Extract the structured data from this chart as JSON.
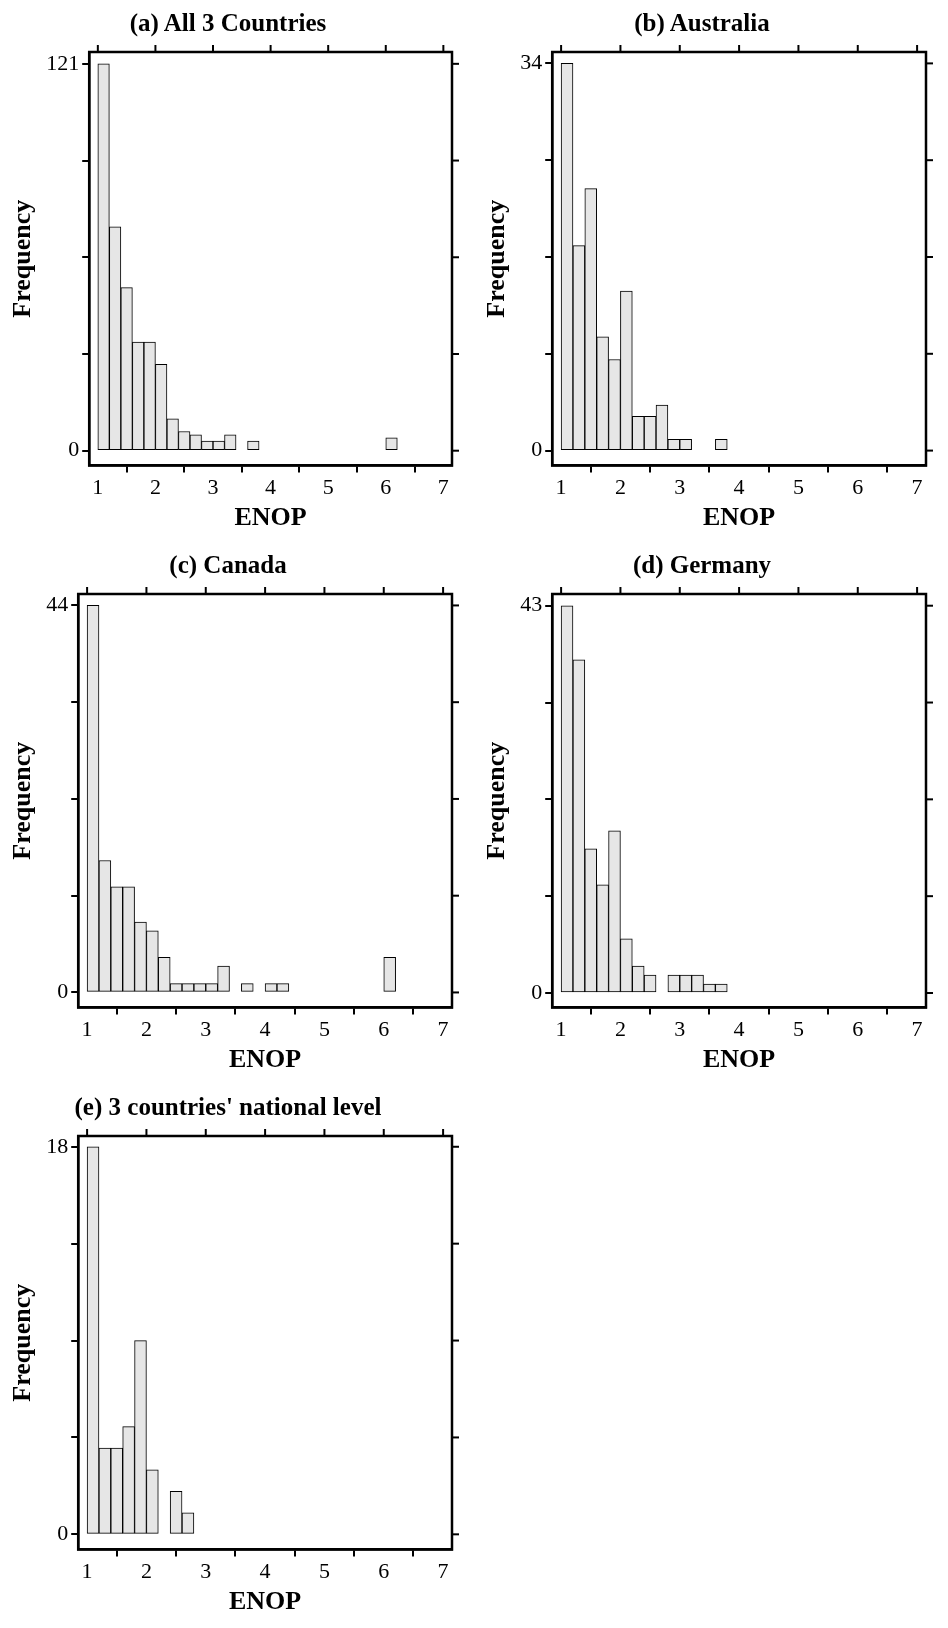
{
  "chart_data": [
    {
      "type": "histogram",
      "title": "(a) All 3 Countries",
      "xlabel": "ENOP",
      "ylabel": "Frequency",
      "color": "#e6e6e6",
      "bins": [
        1,
        1.2,
        1.4,
        1.6,
        1.8,
        2,
        2.2,
        2.4,
        2.6,
        2.8,
        3,
        3.2,
        3.4,
        3.6,
        3.8,
        4,
        4.2,
        4.4,
        4.6,
        4.8,
        5,
        5.2,
        5.4,
        5.6,
        5.8,
        6,
        6.2
      ],
      "values": [
        121,
        70,
        51,
        34,
        34,
        27,
        10,
        6,
        5,
        3,
        3,
        5,
        0,
        3,
        0,
        0,
        0,
        0,
        0,
        0,
        0,
        0,
        0,
        0,
        0,
        4
      ],
      "xlim": [
        0.85,
        7.15
      ],
      "xticks": [
        1,
        2,
        3,
        4,
        5,
        6,
        7
      ],
      "ylim": [
        -4.6,
        124.7
      ],
      "yticks": [
        0,
        {
          "value": 30.25,
          "label": null
        },
        {
          "value": 60.5,
          "label": null
        },
        {
          "value": 90.75,
          "label": null
        },
        121
      ],
      "grid": false,
      "legend": false
    },
    {
      "type": "histogram",
      "title": "(b) Australia",
      "xlabel": "ENOP",
      "ylabel": "Frequency",
      "color": "#e6e6e6",
      "bins": [
        1,
        1.2,
        1.4,
        1.6,
        1.8,
        2,
        2.2,
        2.4,
        2.6,
        2.8,
        3,
        3.2,
        3.4,
        3.6,
        3.8
      ],
      "values": [
        34,
        18,
        23,
        10,
        8,
        14,
        3,
        3,
        4,
        1,
        1,
        0,
        0,
        1
      ],
      "xlim": [
        0.85,
        7.15
      ],
      "xticks": [
        1,
        2,
        3,
        4,
        5,
        6,
        7
      ],
      "ylim": [
        -1.3,
        35
      ],
      "yticks": [
        0,
        {
          "value": 8.5,
          "label": null
        },
        {
          "value": 17,
          "label": null
        },
        {
          "value": 25.5,
          "label": null
        },
        34
      ],
      "grid": false,
      "legend": false
    },
    {
      "type": "histogram",
      "title": "(c) Canada",
      "xlabel": "ENOP",
      "ylabel": "Frequency",
      "color": "#e6e6e6",
      "bins": [
        1,
        1.2,
        1.4,
        1.6,
        1.8,
        2,
        2.2,
        2.4,
        2.6,
        2.8,
        3,
        3.2,
        3.4,
        3.6,
        3.8,
        4,
        4.2,
        4.4,
        4.6,
        4.8,
        5,
        5.2,
        5.4,
        5.6,
        5.8,
        6,
        6.2
      ],
      "values": [
        44,
        15,
        12,
        12,
        8,
        7,
        4,
        1,
        1,
        1,
        1,
        3,
        0,
        1,
        0,
        1,
        1,
        0,
        0,
        0,
        0,
        0,
        0,
        0,
        0,
        4
      ],
      "xlim": [
        0.85,
        7.15
      ],
      "xticks": [
        1,
        2,
        3,
        4,
        5,
        6,
        7
      ],
      "ylim": [
        -1.7,
        45.3
      ],
      "yticks": [
        0,
        {
          "value": 11,
          "label": null
        },
        {
          "value": 22,
          "label": null
        },
        {
          "value": 33,
          "label": null
        },
        44
      ],
      "grid": false,
      "legend": false
    },
    {
      "type": "histogram",
      "title": "(d) Germany",
      "xlabel": "ENOP",
      "ylabel": "Frequency",
      "color": "#e6e6e6",
      "bins": [
        1,
        1.2,
        1.4,
        1.6,
        1.8,
        2,
        2.2,
        2.4,
        2.6,
        2.8,
        3,
        3.2,
        3.4,
        3.6,
        3.8
      ],
      "values": [
        43,
        37,
        16,
        12,
        18,
        6,
        3,
        2,
        0,
        2,
        2,
        2,
        1,
        1
      ],
      "xlim": [
        0.85,
        7.15
      ],
      "xticks": [
        1,
        2,
        3,
        4,
        5,
        6,
        7
      ],
      "ylim": [
        -1.6,
        44.3
      ],
      "yticks": [
        0,
        {
          "value": 10.75,
          "label": null
        },
        {
          "value": 21.5,
          "label": null
        },
        {
          "value": 32.25,
          "label": null
        },
        43
      ],
      "grid": false,
      "legend": false
    },
    {
      "type": "histogram",
      "title": "(e) 3 countries' national level",
      "xlabel": "ENOP",
      "ylabel": "Frequency",
      "color": "#e6e6e6",
      "bins": [
        1,
        1.2,
        1.4,
        1.6,
        1.8,
        2,
        2.2,
        2.4,
        2.6,
        2.8
      ],
      "values": [
        18,
        4,
        4,
        5,
        9,
        3,
        0,
        2,
        1
      ],
      "xlim": [
        0.85,
        7.15
      ],
      "xticks": [
        1,
        2,
        3,
        4,
        5,
        6,
        7
      ],
      "ylim": [
        -0.7,
        18.5
      ],
      "yticks": [
        0,
        {
          "value": 4.5,
          "label": null
        },
        {
          "value": 9,
          "label": null
        },
        {
          "value": 13.5,
          "label": null
        },
        18
      ],
      "grid": false,
      "legend": false
    }
  ]
}
